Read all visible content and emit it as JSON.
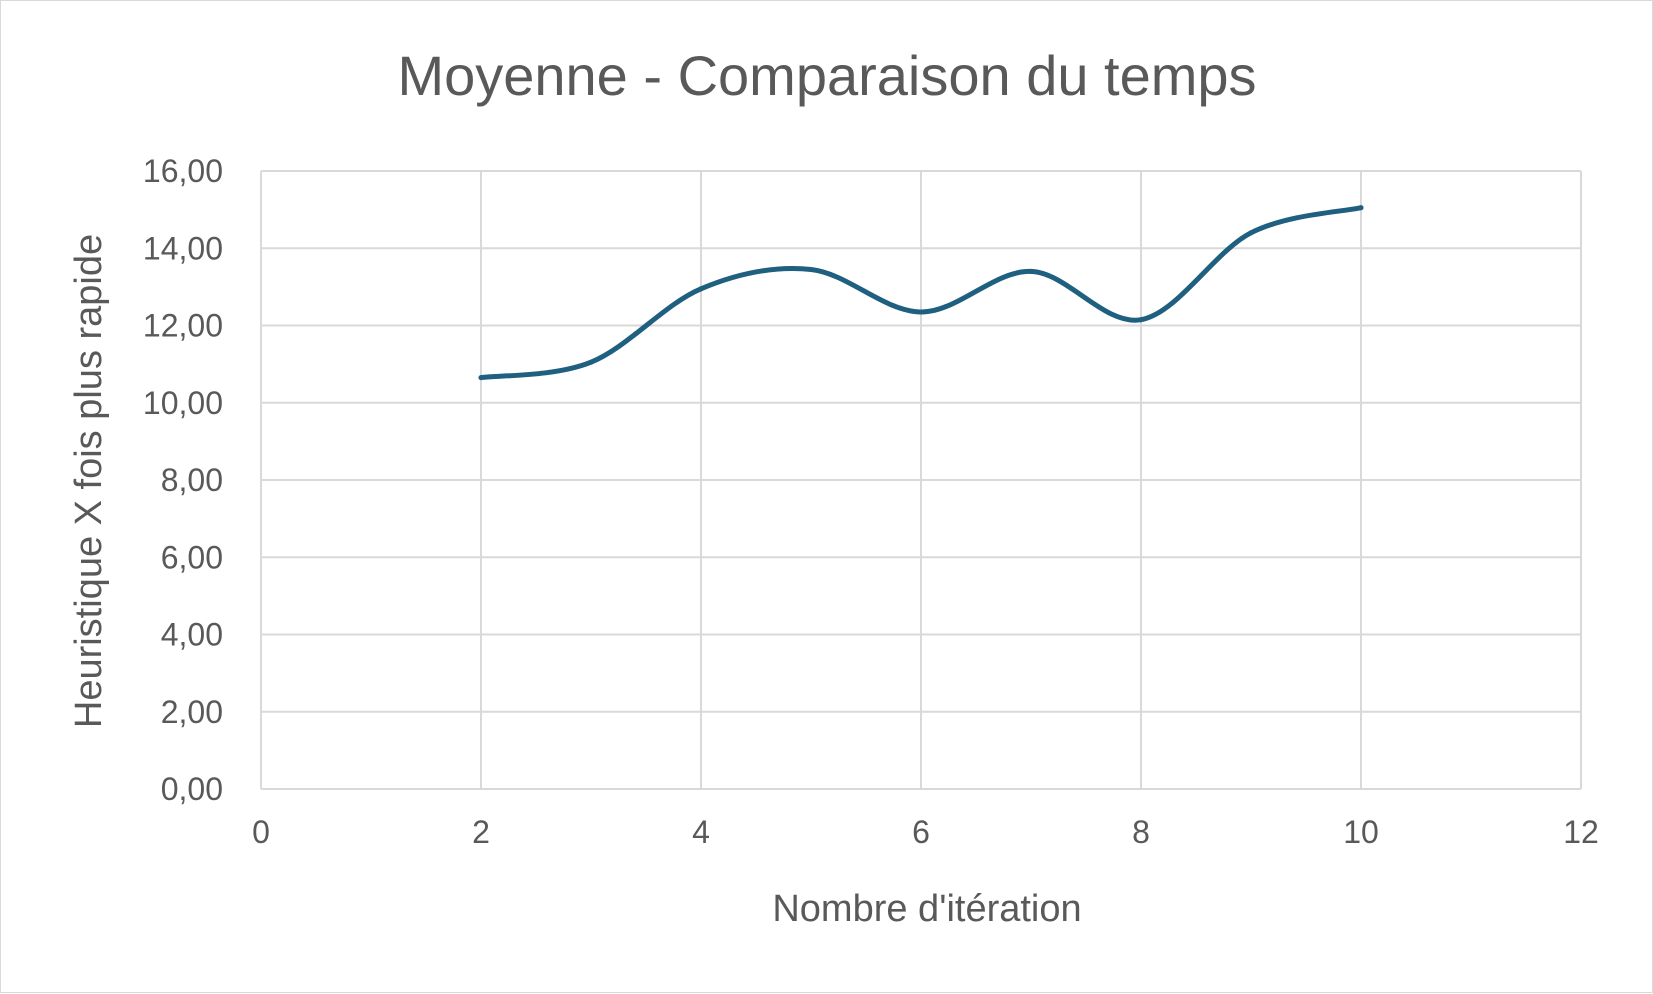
{
  "chart_data": {
    "type": "scatter",
    "title": "Moyenne - Comparaison du temps",
    "xlabel": "Nombre d'itération",
    "ylabel": "Heuristique X fois plus rapide",
    "xlim": [
      0,
      12
    ],
    "ylim": [
      0,
      16
    ],
    "x_ticks": [
      "0",
      "2",
      "4",
      "6",
      "8",
      "10",
      "12"
    ],
    "y_ticks": [
      "0,00",
      "2,00",
      "4,00",
      "6,00",
      "8,00",
      "10,00",
      "12,00",
      "14,00",
      "16,00"
    ],
    "grid": true,
    "legend": false,
    "smooth_line": true,
    "series": [
      {
        "color": "#1f5f7f",
        "points": [
          {
            "x": 2,
            "y": 10.65
          },
          {
            "x": 3,
            "y": 11.05
          },
          {
            "x": 4,
            "y": 12.95
          },
          {
            "x": 5,
            "y": 13.45
          },
          {
            "x": 6,
            "y": 12.35
          },
          {
            "x": 7,
            "y": 13.4
          },
          {
            "x": 8,
            "y": 12.15
          },
          {
            "x": 9,
            "y": 14.4
          },
          {
            "x": 10,
            "y": 15.05
          }
        ]
      }
    ]
  },
  "colors": {
    "grid": "#d9d9d9",
    "text": "#595959",
    "frame": "#d9d9d9",
    "line": "#1f5f7f"
  }
}
